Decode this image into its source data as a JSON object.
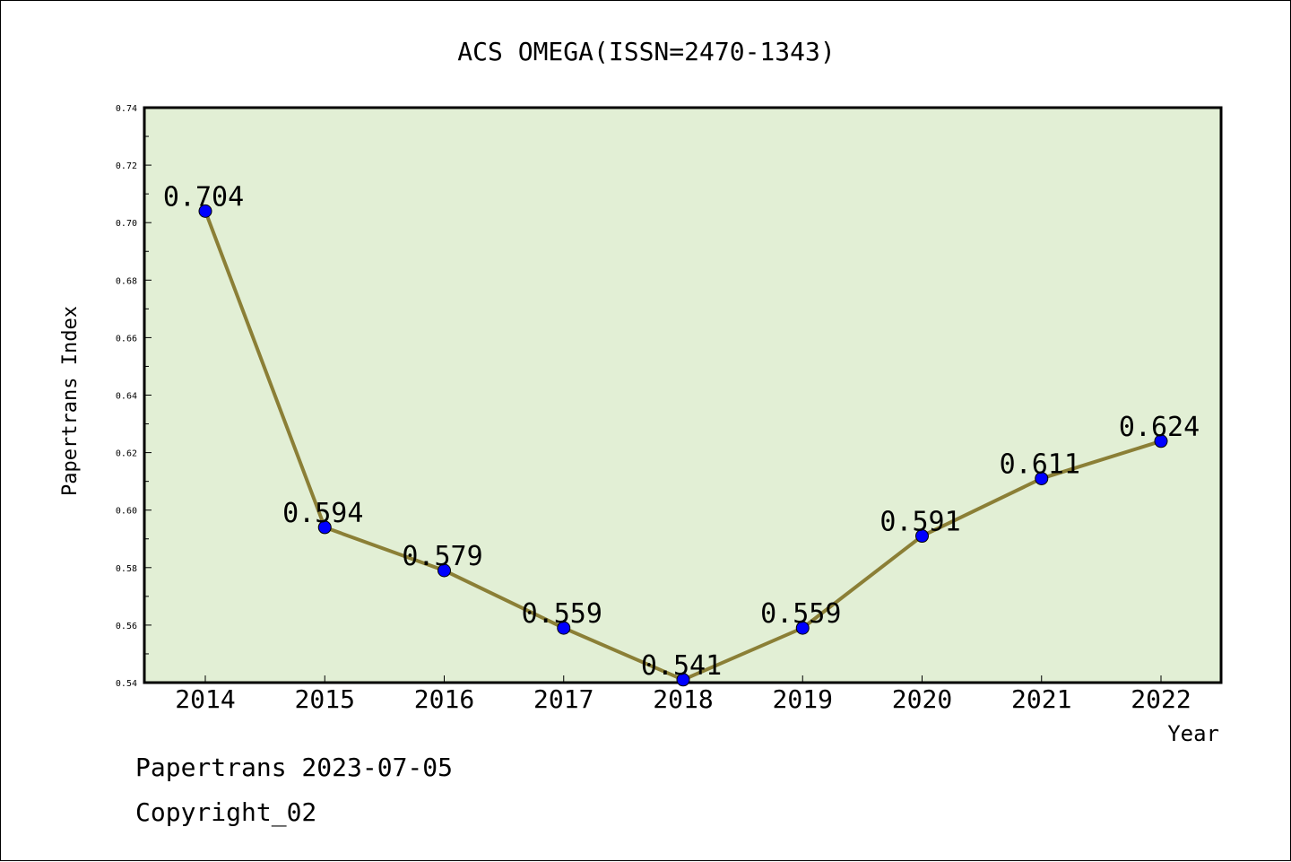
{
  "chart_data": {
    "type": "line",
    "title": "ACS OMEGA(ISSN=2470-1343)",
    "xlabel": "Year",
    "ylabel": "Papertrans Index",
    "categories": [
      "2014",
      "2015",
      "2016",
      "2017",
      "2018",
      "2019",
      "2020",
      "2021",
      "2022"
    ],
    "series": [
      {
        "values": [
          0.704,
          0.594,
          0.579,
          0.559,
          0.541,
          0.559,
          0.591,
          0.611,
          0.624
        ],
        "data_labels": [
          "0.704",
          "0.594",
          "0.579",
          "0.559",
          "0.541",
          "0.559",
          "0.591",
          "0.611",
          "0.624"
        ],
        "line_color": "#8b7f36",
        "marker_color": "#0000ff"
      }
    ],
    "ylim": [
      0.54,
      0.74
    ],
    "yticks": [
      "0.54",
      "0.56",
      "0.58",
      "0.60",
      "0.62",
      "0.64",
      "0.66",
      "0.68",
      "0.70",
      "0.72",
      "0.74"
    ],
    "plot_background": "#e2efd5",
    "grid": false,
    "legend": "none"
  },
  "footer": {
    "line1": "Papertrans 2023-07-05",
    "line2": "Copyright_02"
  }
}
